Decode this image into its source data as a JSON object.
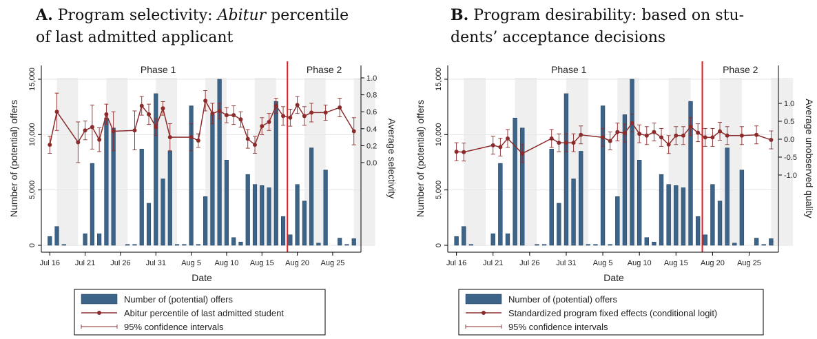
{
  "panels": [
    {
      "title_letter": "A.",
      "title_lines": [
        "Program selectivity:",
        "Abitur",
        "percentile",
        "of last admitted applicant"
      ]
    },
    {
      "title_letter": "B.",
      "title_lines": [
        "Program desirability:  based on stu-",
        "dents’ acceptance decisions"
      ]
    }
  ],
  "chart_data": [
    {
      "type": "bar",
      "xlabel": "Date",
      "ylabel": "Number of (potential) offers",
      "y2label": "Average selectivity",
      "x_ticks": [
        "Jul 16",
        "Jul 21",
        "Jul 26",
        "Jul 31",
        "Aug 5",
        "Aug 10",
        "Aug 15",
        "Aug 20",
        "Aug 25"
      ],
      "y_ticks": [
        "0",
        "5,000",
        "10,000",
        "15,000"
      ],
      "y2_ticks": [
        "0.0",
        "0.2",
        "0.4",
        "0.6",
        "0.8",
        "1.0"
      ],
      "ylim": [
        0,
        15000
      ],
      "y2lim": [
        -0.05,
        1.05
      ],
      "phase_labels": [
        "Phase 1",
        "Phase 2"
      ],
      "phase_boundary_day": 33.6,
      "colors": {
        "bar": "#3c6489",
        "line": "#8c2b2b",
        "shade": "#efefef",
        "phase_line": "#e31a1c"
      },
      "bars": [
        [
          0,
          800
        ],
        [
          1,
          1700
        ],
        [
          2,
          80
        ],
        [
          5,
          1050
        ],
        [
          6,
          7400
        ],
        [
          7,
          1050
        ],
        [
          8,
          11500
        ],
        [
          9,
          10600
        ],
        [
          11,
          80
        ],
        [
          12,
          80
        ],
        [
          13,
          8700
        ],
        [
          14,
          3800
        ],
        [
          15,
          13700
        ],
        [
          16,
          6000
        ],
        [
          17,
          8500
        ],
        [
          18,
          80
        ],
        [
          19,
          80
        ],
        [
          20,
          12600
        ],
        [
          21,
          80
        ],
        [
          22,
          4400
        ],
        [
          23,
          11800
        ],
        [
          24,
          15000
        ],
        [
          25,
          7700
        ],
        [
          26,
          700
        ],
        [
          27,
          300
        ],
        [
          28,
          6400
        ],
        [
          29,
          5500
        ],
        [
          30,
          5400
        ],
        [
          31,
          5200
        ],
        [
          32,
          13000
        ],
        [
          33,
          2600
        ],
        [
          34,
          950
        ],
        [
          35,
          5500
        ],
        [
          36,
          4000
        ],
        [
          37,
          8800
        ],
        [
          38,
          200
        ],
        [
          39,
          6800
        ],
        [
          41,
          650
        ],
        [
          42,
          80
        ],
        [
          43,
          600
        ]
      ],
      "series": [
        {
          "name": "Abitur percentile of last admitted student",
          "x": [
            0,
            1,
            4,
            5,
            6,
            7,
            8,
            9,
            12,
            13,
            14,
            15,
            16,
            17,
            20,
            21,
            22,
            23,
            24,
            25,
            26,
            27,
            28,
            29,
            30,
            31,
            32,
            33,
            34,
            35,
            36,
            37,
            39,
            41,
            43
          ],
          "y": [
            0.21,
            0.6,
            0.24,
            0.38,
            0.42,
            0.27,
            0.57,
            0.37,
            0.38,
            0.67,
            0.57,
            0.42,
            0.64,
            0.3,
            0.3,
            0.26,
            0.73,
            0.58,
            0.61,
            0.56,
            0.56,
            0.51,
            0.28,
            0.21,
            0.43,
            0.48,
            0.67,
            0.55,
            0.53,
            0.68,
            0.55,
            0.59,
            0.59,
            0.65,
            0.37
          ],
          "ci_low": [
            0.11,
            0.38,
            0.0,
            0.27,
            0.16,
            0.13,
            0.45,
            0.14,
            0.15,
            0.56,
            0.45,
            0.32,
            0.56,
            0.14,
            0.14,
            0.18,
            0.61,
            0.46,
            0.52,
            0.47,
            0.45,
            0.42,
            0.17,
            0.11,
            0.33,
            0.38,
            0.58,
            0.44,
            0.43,
            0.58,
            0.44,
            0.48,
            0.5,
            0.54,
            0.21
          ]
        }
      ],
      "ci_high_extra": [
        0.0
      ],
      "legend": [
        "Number of (potential) offers",
        "Abitur percentile of last admitted student",
        "95% confidence intervals"
      ]
    },
    {
      "type": "bar",
      "xlabel": "Date",
      "ylabel": "Number of (potential) offers",
      "y2label": "Average unobserved quality",
      "x_ticks": [
        "Jul 16",
        "Jul 21",
        "Jul 26",
        "Jul 31",
        "Aug 5",
        "Aug 10",
        "Aug 15",
        "Aug 20",
        "Aug 25"
      ],
      "y_ticks": [
        "0",
        "5,000",
        "10,000",
        "15,000"
      ],
      "y2_ticks": [
        "-1.0",
        "-0.5",
        "0.0",
        "0.5",
        "1.0"
      ],
      "ylim": [
        0,
        15000
      ],
      "y2lim": [
        -2.9,
        1.9
      ],
      "phase_labels": [
        "Phase 1",
        "Phase 2"
      ],
      "phase_boundary_day": 33.6,
      "colors": {
        "bar": "#3c6489",
        "line": "#8c2b2b",
        "shade": "#efefef",
        "phase_line": "#e31a1c"
      },
      "bars": [
        [
          0,
          800
        ],
        [
          1,
          1700
        ],
        [
          2,
          80
        ],
        [
          5,
          1050
        ],
        [
          6,
          7400
        ],
        [
          7,
          1050
        ],
        [
          8,
          11500
        ],
        [
          9,
          10600
        ],
        [
          11,
          80
        ],
        [
          12,
          80
        ],
        [
          13,
          8700
        ],
        [
          14,
          3800
        ],
        [
          15,
          13700
        ],
        [
          16,
          6000
        ],
        [
          17,
          8500
        ],
        [
          18,
          80
        ],
        [
          19,
          80
        ],
        [
          20,
          12600
        ],
        [
          21,
          80
        ],
        [
          22,
          4400
        ],
        [
          23,
          11800
        ],
        [
          24,
          15000
        ],
        [
          25,
          7700
        ],
        [
          26,
          700
        ],
        [
          27,
          300
        ],
        [
          28,
          6400
        ],
        [
          29,
          5500
        ],
        [
          30,
          5400
        ],
        [
          31,
          5200
        ],
        [
          32,
          13000
        ],
        [
          33,
          2600
        ],
        [
          34,
          950
        ],
        [
          35,
          5500
        ],
        [
          36,
          4000
        ],
        [
          37,
          8800
        ],
        [
          38,
          200
        ],
        [
          39,
          6800
        ],
        [
          41,
          650
        ],
        [
          42,
          80
        ],
        [
          43,
          600
        ]
      ],
      "series": [
        {
          "name": "Standardized program fixed effects (conditional logit)",
          "x": [
            0,
            1,
            5,
            6,
            7,
            9,
            13,
            14,
            15,
            16,
            17,
            20,
            21,
            22,
            23,
            24,
            25,
            26,
            27,
            28,
            29,
            30,
            31,
            32,
            33,
            34,
            35,
            36,
            37,
            39,
            41,
            43
          ],
          "y": [
            -0.35,
            -0.36,
            -0.17,
            -0.22,
            0.02,
            -0.4,
            0.02,
            -0.1,
            -0.1,
            -0.1,
            0.12,
            0.05,
            -0.05,
            0.2,
            0.17,
            0.45,
            0.15,
            0.1,
            0.2,
            0.05,
            -0.15,
            0.1,
            0.1,
            0.35,
            0.18,
            0.05,
            0.05,
            0.22,
            0.1,
            0.1,
            0.12,
            -0.02
          ]
        }
      ],
      "legend": [
        "Number of (potential) offers",
        "Standardized program fixed effects (conditional logit)",
        "95% confidence intervals"
      ]
    }
  ]
}
